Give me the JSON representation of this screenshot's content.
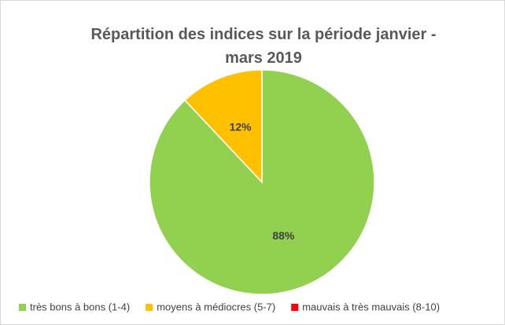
{
  "chart_data": {
    "type": "pie",
    "title": "Répartition des indices sur la période janvier - mars 2019",
    "categories": [
      "très bons à bons (1-4)",
      "moyens à médiocres (5-7)",
      "mauvais à très mauvais (8-10)"
    ],
    "values": [
      88,
      12,
      0
    ],
    "value_labels": [
      "88%",
      "12%",
      null
    ],
    "colors": [
      "#92d050",
      "#ffc000",
      "#ff0000"
    ],
    "legend": "bottom"
  }
}
